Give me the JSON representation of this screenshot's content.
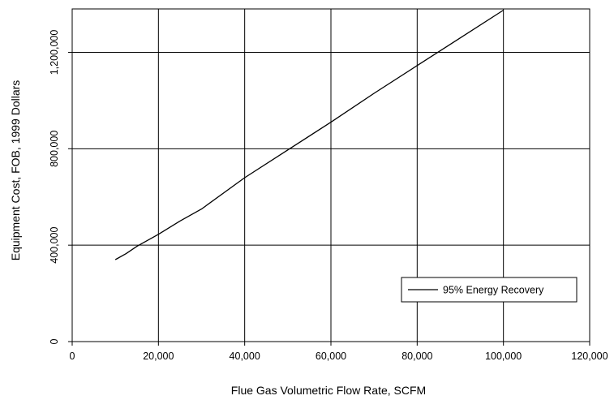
{
  "chart_data": {
    "type": "line",
    "title": "",
    "xlabel": "Flue Gas Volumetric Flow Rate, SCFM",
    "ylabel": "Equipment Cost, FOB, 1999 Dollars",
    "xlim": [
      0,
      120000
    ],
    "ylim": [
      0,
      1380000
    ],
    "x_ticks": [
      0,
      20000,
      40000,
      60000,
      80000,
      100000,
      120000
    ],
    "x_tick_labels": [
      "0",
      "20,000",
      "40,000",
      "60,000",
      "80,000",
      "100,000",
      "120,000"
    ],
    "y_ticks": [
      0,
      400000,
      800000,
      1200000
    ],
    "y_tick_labels": [
      "0",
      "400,000",
      "800,000",
      "1,200,000"
    ],
    "grid": true,
    "legend_position": "lower-right",
    "series": [
      {
        "name": "95% Energy Recovery",
        "color": "#000000",
        "x": [
          10000,
          12500,
          15000,
          20000,
          25000,
          30000,
          40000,
          50000,
          60000,
          70000,
          80000,
          90000,
          100000
        ],
        "y": [
          340000,
          365000,
          395000,
          445000,
          500000,
          550000,
          680000,
          795000,
          910000,
          1030000,
          1145000,
          1260000,
          1375000
        ]
      }
    ]
  }
}
